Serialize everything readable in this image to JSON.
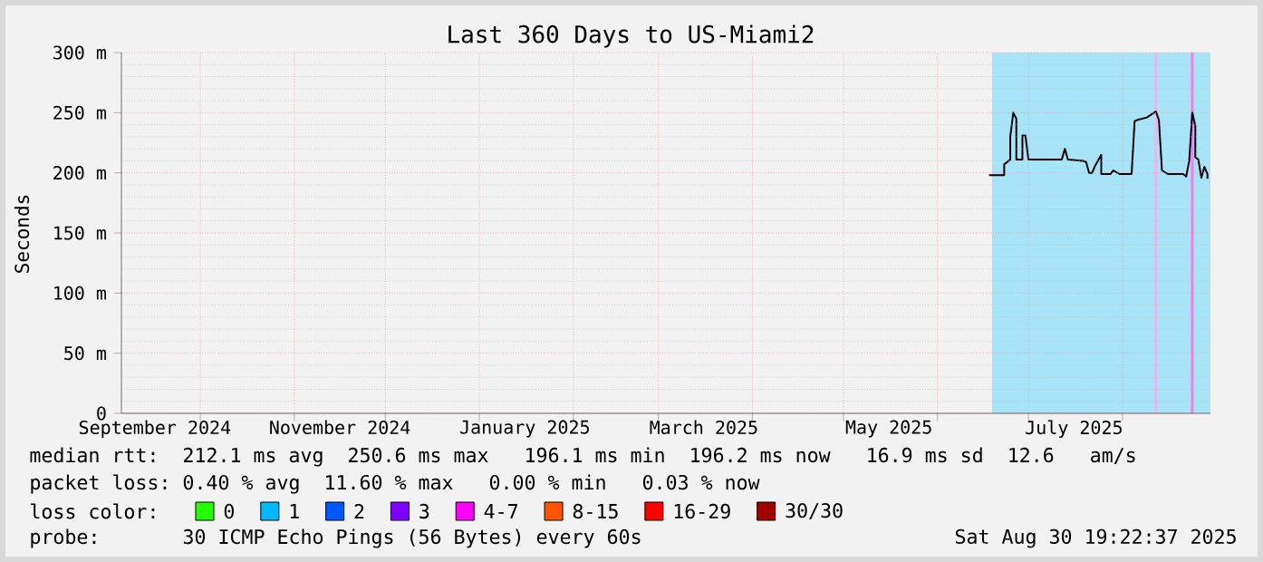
{
  "chart_data": {
    "type": "line",
    "title": "Last 360 Days to US-Miami2",
    "ylabel": "Seconds",
    "xlim": [
      "2024-09-05",
      "2025-08-30"
    ],
    "ylim": [
      0,
      300
    ],
    "xticks": [
      {
        "value": "2024-10-01",
        "label": null
      },
      {
        "value": "2024-11-01",
        "label": null
      },
      {
        "value": "2024-12-01",
        "label": null
      },
      {
        "value": "2025-01-01",
        "label": null
      },
      {
        "value": "2025-02-01",
        "label": null
      },
      {
        "value": "2025-03-01",
        "label": null
      },
      {
        "value": "2025-04-01",
        "label": null
      },
      {
        "value": "2025-05-01",
        "label": null
      },
      {
        "value": "2025-06-01",
        "label": null
      },
      {
        "value": "2025-07-01",
        "label": null
      },
      {
        "value": "2025-08-01",
        "label": null
      },
      {
        "value": "2024-09-16",
        "label": "September 2024"
      },
      {
        "value": "2024-11-16",
        "label": "November 2024"
      },
      {
        "value": "2025-01-16",
        "label": "January 2025"
      },
      {
        "value": "2025-03-16",
        "label": "March 2025"
      },
      {
        "value": "2025-05-16",
        "label": "May 2025"
      },
      {
        "value": "2025-07-16",
        "label": "July 2025"
      }
    ],
    "yticks": [
      0,
      {
        "value": 50,
        "label": "50 m"
      },
      {
        "value": 100,
        "label": "100 m"
      },
      {
        "value": 150,
        "label": "150 m"
      },
      {
        "value": 200,
        "label": "200 m"
      },
      {
        "value": 250,
        "label": "250 m"
      },
      {
        "value": 300,
        "label": "300 m"
      }
    ],
    "grid": true,
    "marker": "none",
    "line_style": "solid",
    "legend": "bottom",
    "legend_title": "loss color:",
    "bands": [
      {
        "axis": "x",
        "from": "2025-06-19",
        "to": "2025-08-30",
        "color": "#a8e4f8"
      }
    ],
    "ref_lines": [
      {
        "axis": "x",
        "value": "2025-08-12",
        "color": "#e8b8f0"
      },
      {
        "axis": "x",
        "value": "2025-08-24",
        "color": "#f080f0"
      }
    ],
    "series": [
      {
        "color": "#000000",
        "x": [
          "2025-06-18",
          "2025-06-23",
          "2025-06-23",
          "2025-06-25",
          "2025-06-25",
          "2025-06-26",
          "2025-06-27",
          "2025-06-27",
          "2025-06-29",
          "2025-06-29",
          "2025-06-30",
          "2025-07-01",
          "2025-07-12",
          "2025-07-13",
          "2025-07-14",
          "2025-07-19",
          "2025-07-20",
          "2025-07-21",
          "2025-07-22",
          "2025-07-23",
          "2025-07-25",
          "2025-07-25",
          "2025-07-28",
          "2025-07-29",
          "2025-07-31",
          "2025-08-04",
          "2025-08-05",
          "2025-08-06",
          "2025-08-09",
          "2025-08-12",
          "2025-08-13",
          "2025-08-14",
          "2025-08-16",
          "2025-08-21",
          "2025-08-22",
          "2025-08-23",
          "2025-08-24",
          "2025-08-25",
          "2025-08-25",
          "2025-08-26",
          "2025-08-27",
          "2025-08-28",
          "2025-08-29",
          "2025-08-29"
        ],
        "values": [
          198,
          198,
          207,
          211,
          230,
          250,
          245,
          211,
          211,
          231,
          231,
          211,
          211,
          220,
          211,
          210,
          209,
          200,
          200,
          206,
          215,
          199,
          199,
          202,
          199,
          199,
          243,
          244,
          246,
          251,
          244,
          202,
          199,
          199,
          197,
          210,
          250,
          239,
          213,
          211,
          196,
          205,
          199,
          195
        ]
      },
      {
        "name": "0",
        "color": "#26ff00"
      },
      {
        "name": "1",
        "color": "#00b8ff"
      },
      {
        "name": "2",
        "color": "#0059ff"
      },
      {
        "name": "3",
        "color": "#7e00ff"
      },
      {
        "name": "4-7",
        "color": "#ff00ff"
      },
      {
        "name": "8-15",
        "color": "#ff5500"
      },
      {
        "name": "16-29",
        "color": "#ff0000"
      },
      {
        "name": "30/30",
        "color": "#a10000"
      }
    ],
    "annotations": [
      "median rtt:  212.1 ms avg  250.6 ms max   196.1 ms min  196.2 ms now   16.9 ms sd  12.6   am/s",
      "packet loss: 0.40 % avg  11.60 % max   0.00 % min   0.03 % now",
      "probe:       30 ICMP Echo Pings (56 Bytes) every 60s",
      "Sat Aug 30 19:22:37 2025"
    ]
  }
}
